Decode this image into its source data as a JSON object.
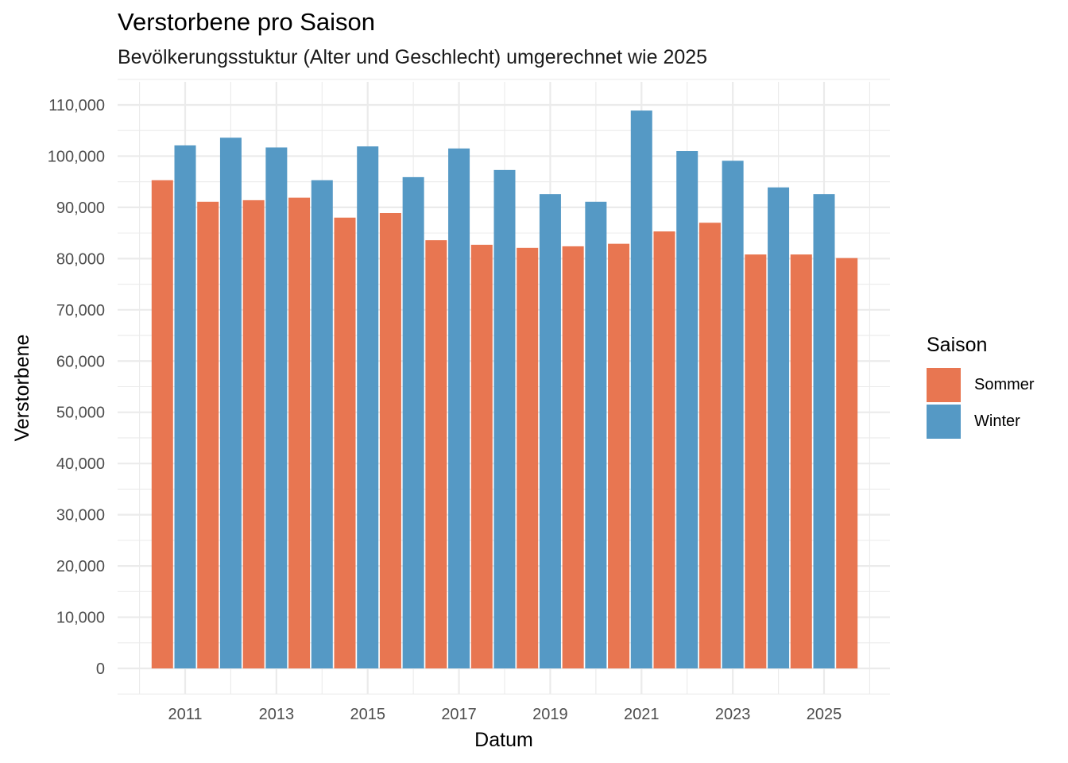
{
  "chart_data": {
    "type": "bar",
    "title": "Verstorbene pro Saison",
    "subtitle": "Bevölkerungsstuktur (Alter und Geschlecht) umgerechnet wie 2025",
    "xlabel": "Datum",
    "ylabel": "Verstorbene",
    "ylim": [
      -5000,
      115000
    ],
    "xlim": [
      2009.75,
      2026.45
    ],
    "x_ticks": [
      "2011",
      "2013",
      "2015",
      "2017",
      "2019",
      "2021",
      "2023",
      "2025"
    ],
    "y_ticks": [
      "0",
      "10,000",
      "20,000",
      "30,000",
      "40,000",
      "50,000",
      "60,000",
      "70,000",
      "80,000",
      "90,000",
      "100,000",
      "110,000"
    ],
    "grid": true,
    "legend": {
      "title": "Saison",
      "position": "right"
    },
    "series": [
      {
        "name": "Sommer",
        "color": "#E87651",
        "x": [
          2010.5,
          2011.5,
          2012.5,
          2013.5,
          2014.5,
          2015.5,
          2016.5,
          2017.5,
          2018.5,
          2019.5,
          2020.5,
          2021.5,
          2022.5,
          2023.5,
          2024.5,
          2025.5
        ],
        "values": [
          95300,
          91100,
          91400,
          91900,
          88000,
          88900,
          83600,
          82700,
          82100,
          82400,
          82900,
          85300,
          87000,
          80800,
          80800,
          80100
        ]
      },
      {
        "name": "Winter",
        "color": "#5599C5",
        "x": [
          2011,
          2012,
          2013,
          2014,
          2015,
          2016,
          2017,
          2018,
          2019,
          2020,
          2021,
          2022,
          2023,
          2024,
          2025
        ],
        "values": [
          102100,
          103600,
          101700,
          95300,
          101900,
          95900,
          101500,
          97300,
          92600,
          91100,
          108900,
          101000,
          99100,
          93900,
          92600
        ]
      }
    ]
  }
}
